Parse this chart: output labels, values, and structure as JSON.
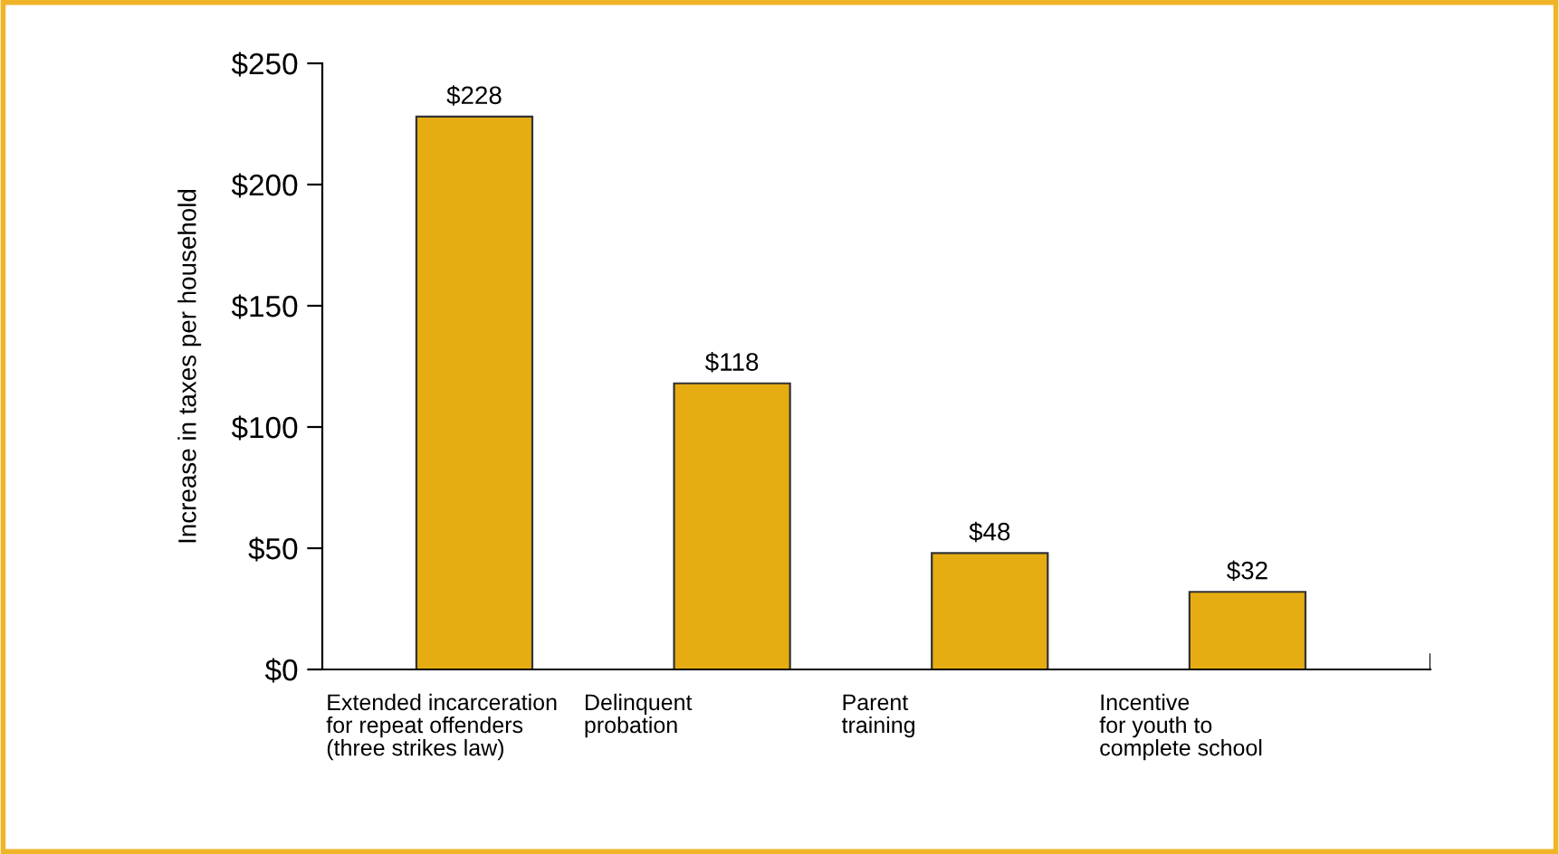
{
  "chart_data": {
    "type": "bar",
    "ylabel": "Increase in taxes per household",
    "categories": [
      "Extended incarceration\nfor repeat offenders\n(three strikes law)",
      "Delinquent\nprobation",
      "Parent\ntraining",
      "Incentive\nfor youth to\ncomplete school"
    ],
    "values": [
      228,
      118,
      48,
      32
    ],
    "value_labels": [
      "$228",
      "$118",
      "$48",
      "$32"
    ],
    "color": "#e6ad12",
    "ylim": [
      0,
      250
    ],
    "yticks": [
      {
        "value": 0,
        "label": "$0"
      },
      {
        "value": 50,
        "label": "$50"
      },
      {
        "value": 100,
        "label": "$100"
      },
      {
        "value": 150,
        "label": "$150"
      },
      {
        "value": 200,
        "label": "$200"
      },
      {
        "value": 250,
        "label": "$250"
      }
    ],
    "grid": false,
    "legend": false
  }
}
